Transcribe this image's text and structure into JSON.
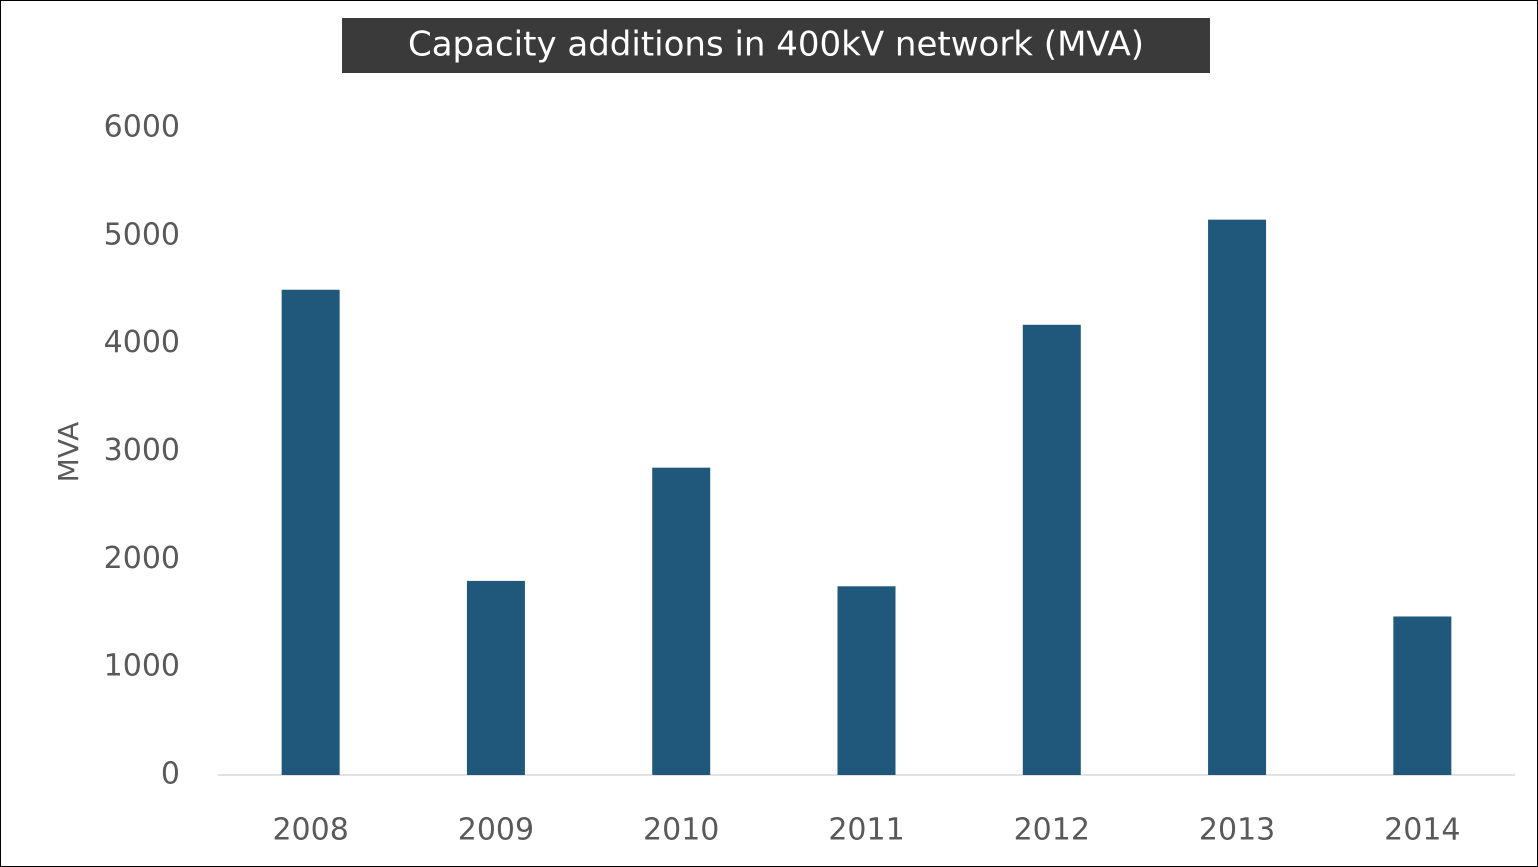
{
  "chart_data": {
    "type": "bar",
    "title": "Capacity additions in 400kV network (MVA)",
    "y_label": "MVA",
    "categories": [
      "2008",
      "2009",
      "2010",
      "2011",
      "2012",
      "2013",
      "2014"
    ],
    "values": [
      4500,
      1800,
      2850,
      1750,
      4175,
      5150,
      1470
    ],
    "color": "#1f587a",
    "ylim": [
      0,
      6000
    ],
    "yticks": [
      0,
      1000,
      2000,
      3000,
      4000,
      5000,
      6000
    ],
    "grid": false
  }
}
